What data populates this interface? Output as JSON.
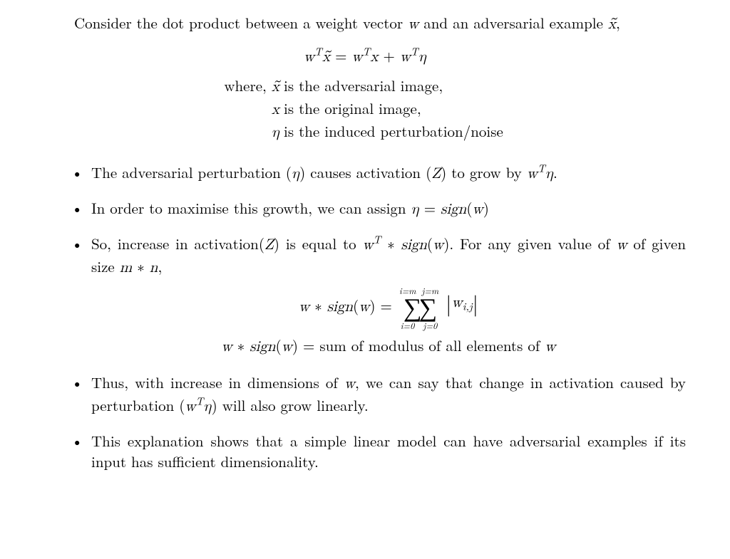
{
  "intro": {
    "text_before_w": "Consider the dot product between a weight vector ",
    "w": "w",
    "text_mid": " and an adversarial example ",
    "xtilde": "x̃",
    "text_after": ","
  },
  "equation1": {
    "lhs_w": "w",
    "lhs_sup": "T",
    "lhs_x": "x̃",
    "eq": " = ",
    "r1_w": "w",
    "r1_sup": "T",
    "r1_x": "x",
    "plus": " + ",
    "r2_w": "w",
    "r2_sup": "T",
    "r2_eta": "η"
  },
  "where": {
    "label": "where, ",
    "l1_sym": "x̃",
    "l1_txt": " is the adversarial image,",
    "l2_sym": "x",
    "l2_txt": " is the original image,",
    "l3_sym": "η",
    "l3_txt": " is the induced perturbation/noise"
  },
  "bullets": {
    "b1": {
      "p1": "The adversarial perturbation (",
      "eta": "η",
      "p2": ") causes activation (",
      "Z": "Z",
      "p3": ") to grow by ",
      "w": "w",
      "supT": "T",
      "eta2": "η",
      "p4": "."
    },
    "b2": {
      "p1": "In order to maximise this growth, we can assign ",
      "eta": "η",
      "eq": " = ",
      "sign": "sign",
      "lp": "(",
      "w": "w",
      "rp": ")"
    },
    "b3": {
      "p1": "So, increase in activation(",
      "Z": "Z",
      "p2": ") is equal to ",
      "w": "w",
      "supT": "T",
      "star": " ∗ ",
      "sign": "sign",
      "lp": "(",
      "w2": "w",
      "rp": ")",
      "p3": ". For any given value of ",
      "w3": "w",
      "p4": " of given size ",
      "m": "m",
      "star2": " ∗ ",
      "n": "n",
      "p5": ","
    },
    "eq_big": {
      "lhs_w": "w",
      "star": " ∗ ",
      "sign": "sign",
      "lp": "(",
      "w2": "w",
      "rp": ")",
      "eq": " = ",
      "top_i": "i=m",
      "top_j": "j=m",
      "sigma": "∑∑",
      "bot_i": "i=0",
      "bot_j": "j=0",
      "bar": "|",
      "wij_w": "w",
      "wij_sub": "i,j",
      "bar2": "|"
    },
    "eq_line2": {
      "lhs_w": "w",
      "star": " ∗ ",
      "sign": "sign",
      "lp": "(",
      "w2": "w",
      "rp": ")",
      "eq": " = ",
      "rhs": "sum of modulus of all elements of ",
      "w3": "w"
    },
    "b4": {
      "p1": "Thus, with increase in dimensions of ",
      "w": "w",
      "p2": ", we can say that change in activation caused by perturbation (",
      "w2": "w",
      "supT": "T",
      "eta": "η",
      "p3": ") will also grow linearly."
    },
    "b5": {
      "p1": "This explanation shows that a simple linear model can have adversarial examples if its input has sufficient dimensionality."
    }
  }
}
